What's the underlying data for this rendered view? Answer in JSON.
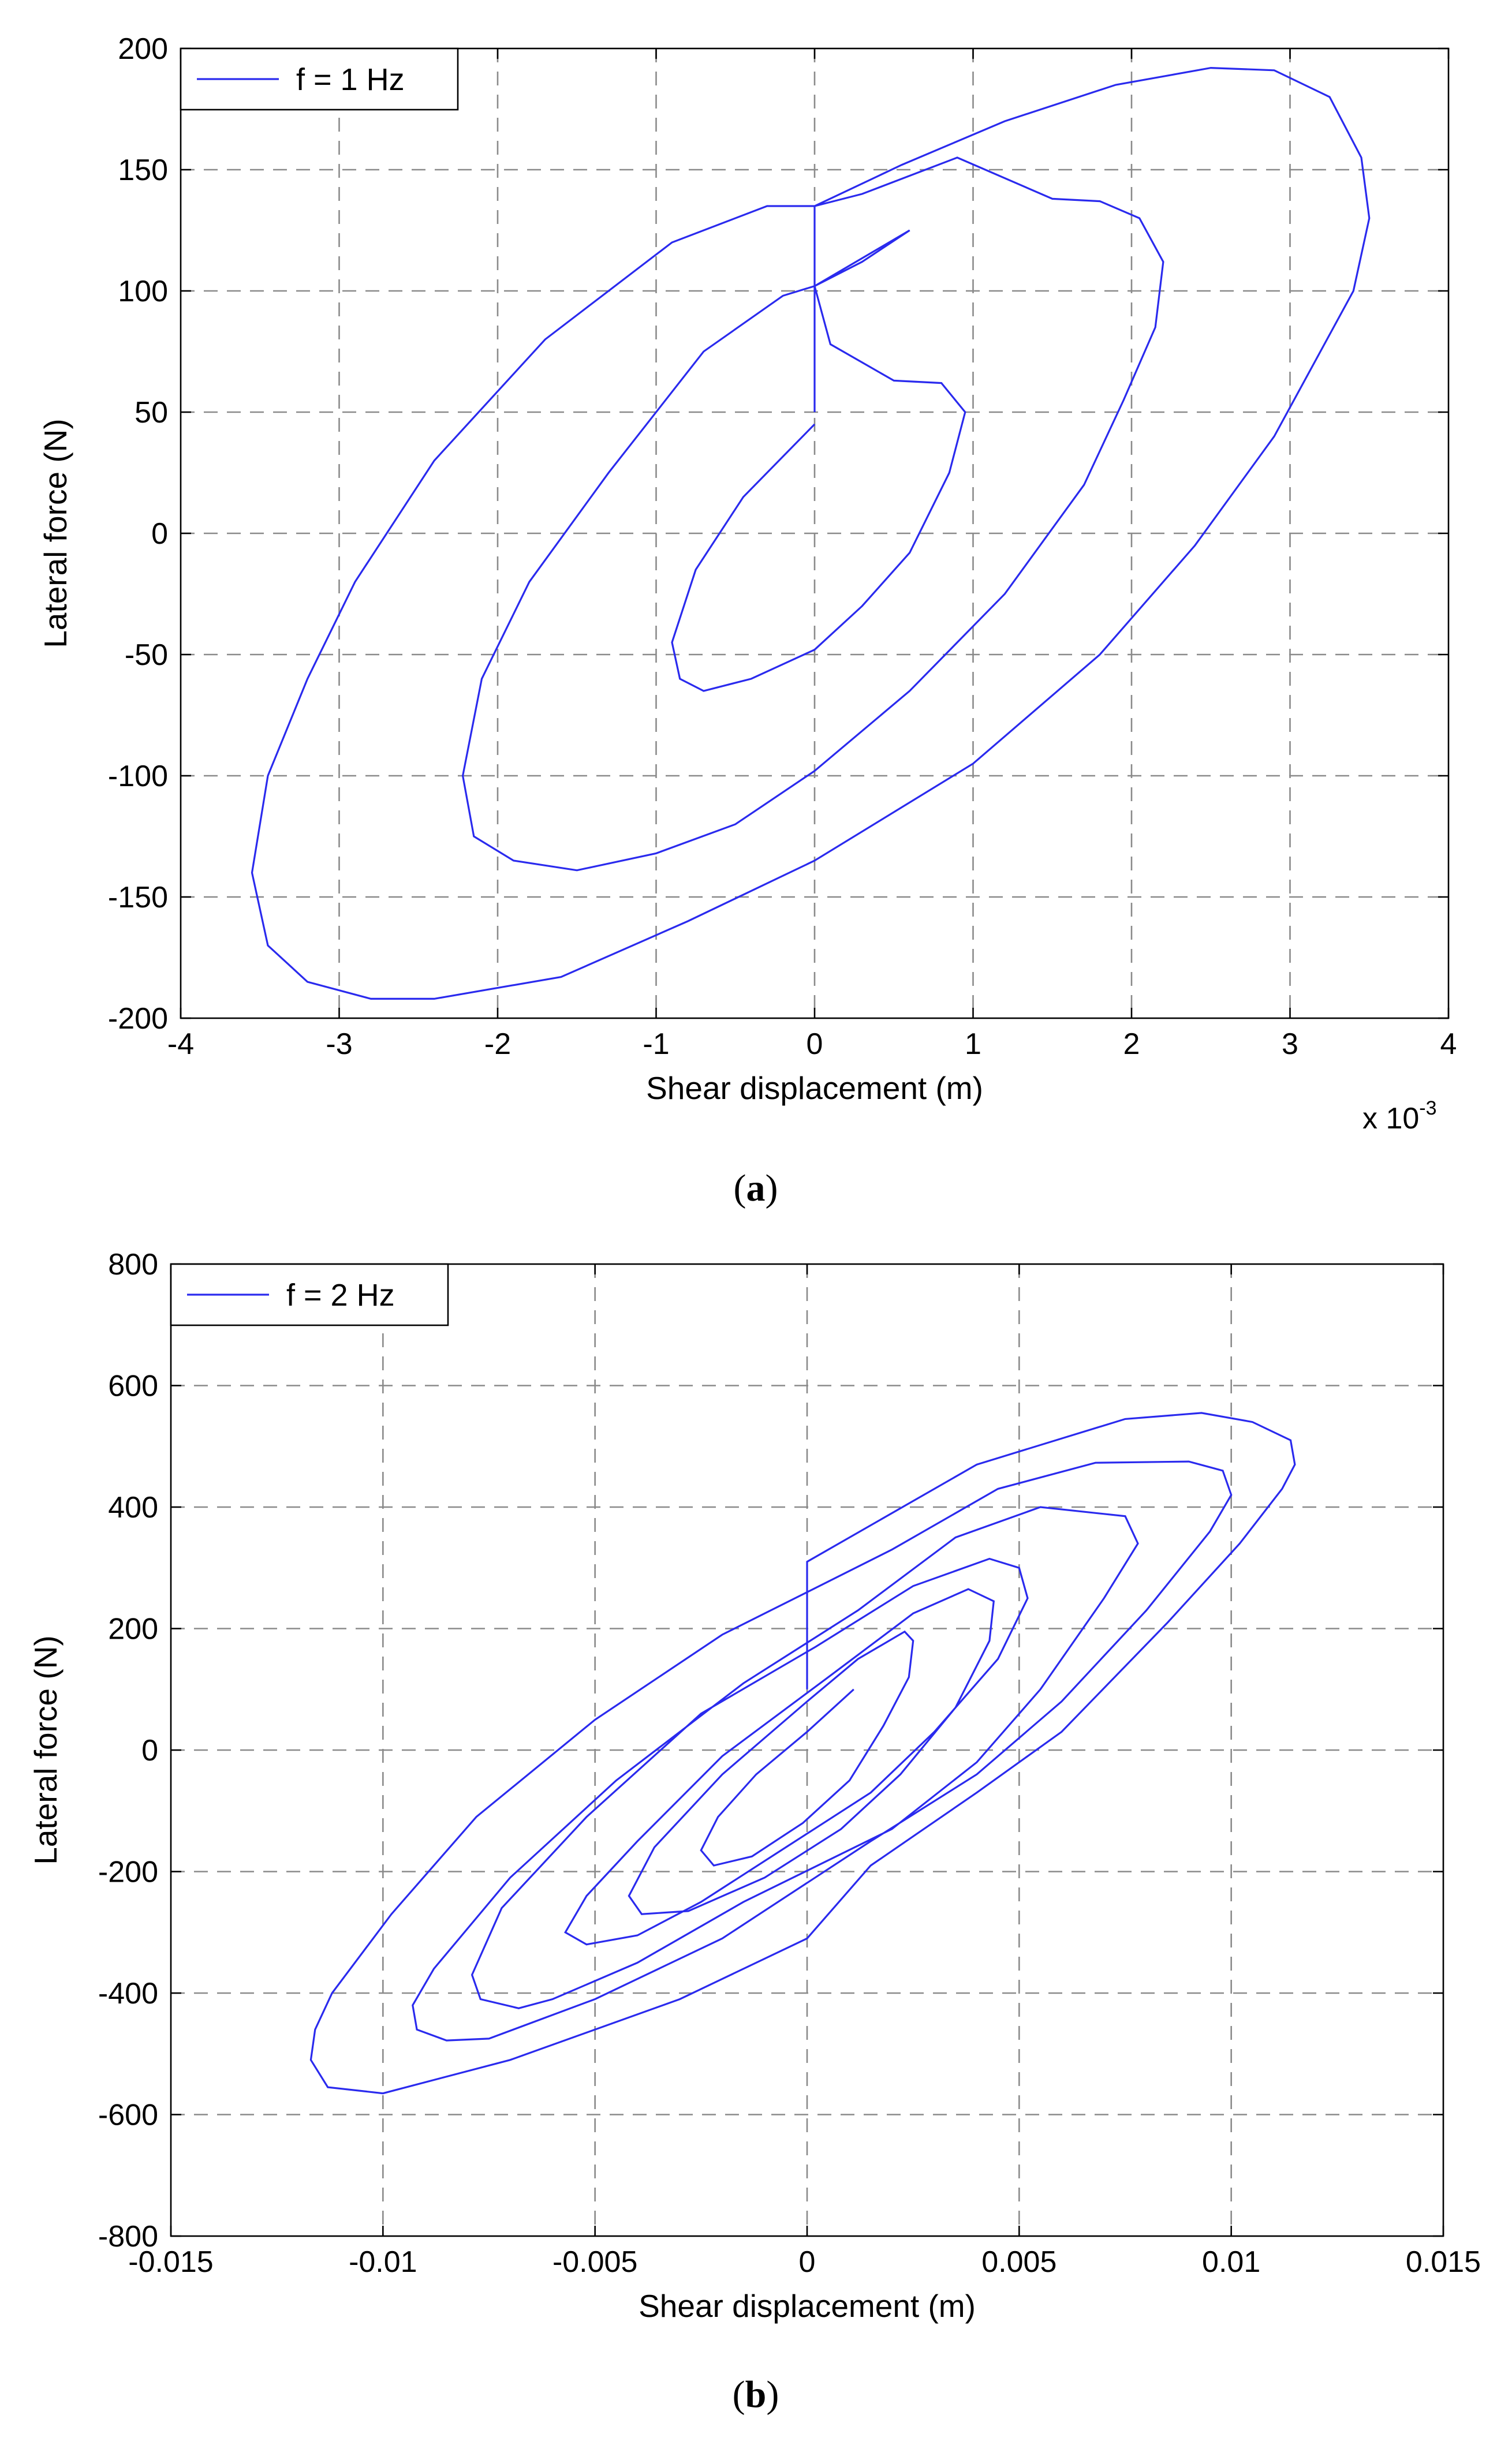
{
  "figure": {
    "colors": {
      "line": "#2a2aee",
      "grid": "#8a8a8a",
      "axes": "#000000",
      "background": "#ffffff"
    }
  },
  "chart_data": [
    {
      "id": "a",
      "type": "line",
      "caption_letter": "a",
      "legend": "f = 1 Hz",
      "legend_placement": "top-left",
      "xlabel": "Shear displacement (m)",
      "ylabel": "Lateral force (N)",
      "x_exponent_label": "x 10",
      "x_exponent_power": "-3",
      "xlim": [
        -4,
        4
      ],
      "ylim": [
        -200,
        200
      ],
      "xticks": [
        -4,
        -3,
        -2,
        -1,
        0,
        1,
        2,
        3,
        4
      ],
      "xtick_labels": [
        "-4",
        "-3",
        "-2",
        "-1",
        "0",
        "1",
        "2",
        "3",
        "4"
      ],
      "yticks": [
        -200,
        -150,
        -100,
        -50,
        0,
        50,
        100,
        150,
        200
      ],
      "ytick_labels": [
        "-200",
        "-150",
        "-100",
        "-50",
        "0",
        "50",
        "100",
        "150",
        "200"
      ],
      "grid": true,
      "series": [
        {
          "name": "f = 1 Hz",
          "x_unit_note": "x values in 1e-3 m",
          "points": [
            [
              0,
              50
            ],
            [
              0,
              135
            ],
            [
              0.55,
              152
            ],
            [
              1.2,
              170
            ],
            [
              1.9,
              185
            ],
            [
              2.5,
              192
            ],
            [
              2.9,
              191
            ],
            [
              3.25,
              180
            ],
            [
              3.45,
              155
            ],
            [
              3.5,
              130
            ],
            [
              3.4,
              100
            ],
            [
              3.15,
              70
            ],
            [
              2.9,
              40
            ],
            [
              2.4,
              -5
            ],
            [
              1.8,
              -50
            ],
            [
              1.0,
              -95
            ],
            [
              0,
              -135
            ],
            [
              -0.8,
              -160
            ],
            [
              -1.6,
              -183
            ],
            [
              -2.4,
              -192
            ],
            [
              -2.8,
              -192
            ],
            [
              -3.2,
              -185
            ],
            [
              -3.45,
              -170
            ],
            [
              -3.55,
              -140
            ],
            [
              -3.45,
              -100
            ],
            [
              -3.2,
              -60
            ],
            [
              -2.9,
              -20
            ],
            [
              -2.4,
              30
            ],
            [
              -1.7,
              80
            ],
            [
              -0.9,
              120
            ],
            [
              -0.3,
              135
            ],
            [
              0,
              135
            ],
            [
              0.3,
              140
            ],
            [
              0.9,
              155
            ],
            [
              1.5,
              138
            ],
            [
              1.8,
              137
            ],
            [
              2.05,
              130
            ],
            [
              2.2,
              112
            ],
            [
              2.15,
              85
            ],
            [
              1.95,
              55
            ],
            [
              1.7,
              20
            ],
            [
              1.2,
              -25
            ],
            [
              0.6,
              -65
            ],
            [
              0,
              -98
            ],
            [
              -0.5,
              -120
            ],
            [
              -1.0,
              -132
            ],
            [
              -1.5,
              -139
            ],
            [
              -1.9,
              -135
            ],
            [
              -2.15,
              -125
            ],
            [
              -2.22,
              -100
            ],
            [
              -2.1,
              -60
            ],
            [
              -1.8,
              -20
            ],
            [
              -1.3,
              25
            ],
            [
              -0.7,
              75
            ],
            [
              -0.2,
              98
            ],
            [
              0,
              102
            ],
            [
              0.3,
              112
            ],
            [
              0.6,
              125
            ],
            [
              0,
              102
            ],
            [
              0.1,
              78
            ],
            [
              0.5,
              63
            ],
            [
              0.8,
              62
            ],
            [
              0.95,
              50
            ],
            [
              0.85,
              25
            ],
            [
              0.6,
              -8
            ],
            [
              0.3,
              -30
            ],
            [
              0,
              -48
            ],
            [
              -0.4,
              -60
            ],
            [
              -0.7,
              -65
            ],
            [
              -0.85,
              -60
            ],
            [
              -0.9,
              -45
            ],
            [
              -0.75,
              -15
            ],
            [
              -0.45,
              15
            ],
            [
              -0.15,
              35
            ],
            [
              0,
              45
            ]
          ]
        }
      ]
    },
    {
      "id": "b",
      "type": "line",
      "caption_letter": "b",
      "legend": "f = 2 Hz",
      "legend_placement": "top-left",
      "xlabel": "Shear displacement (m)",
      "ylabel": "Lateral force (N)",
      "xlim": [
        -0.015,
        0.015
      ],
      "ylim": [
        -800,
        800
      ],
      "xticks": [
        -0.015,
        -0.01,
        -0.005,
        0,
        0.005,
        0.01,
        0.015
      ],
      "xtick_labels": [
        "-0.015",
        "-0.01",
        "-0.005",
        "0",
        "0.005",
        "0.01",
        "0.015"
      ],
      "yticks": [
        -800,
        -600,
        -400,
        -200,
        0,
        200,
        400,
        600,
        800
      ],
      "ytick_labels": [
        "-800",
        "-600",
        "-400",
        "-200",
        "0",
        "200",
        "400",
        "600",
        "800"
      ],
      "grid": true,
      "series": [
        {
          "name": "f = 2 Hz",
          "points": [
            [
              0,
              100
            ],
            [
              0,
              310
            ],
            [
              0.004,
              470
            ],
            [
              0.0075,
              545
            ],
            [
              0.0093,
              555
            ],
            [
              0.0105,
              540
            ],
            [
              0.0114,
              510
            ],
            [
              0.0115,
              470
            ],
            [
              0.0112,
              430
            ],
            [
              0.0102,
              340
            ],
            [
              0.0085,
              210
            ],
            [
              0.006,
              30
            ],
            [
              0.004,
              -70
            ],
            [
              0.0015,
              -190
            ],
            [
              0,
              -310
            ],
            [
              -0.003,
              -410
            ],
            [
              -0.007,
              -510
            ],
            [
              -0.01,
              -565
            ],
            [
              -0.0113,
              -555
            ],
            [
              -0.0117,
              -510
            ],
            [
              -0.0116,
              -460
            ],
            [
              -0.0112,
              -400
            ],
            [
              -0.0098,
              -270
            ],
            [
              -0.0078,
              -110
            ],
            [
              -0.005,
              50
            ],
            [
              -0.002,
              190
            ],
            [
              0,
              260
            ],
            [
              0.002,
              330
            ],
            [
              0.0045,
              430
            ],
            [
              0.0068,
              473
            ],
            [
              0.009,
              475
            ],
            [
              0.0098,
              460
            ],
            [
              0.01,
              420
            ],
            [
              0.0095,
              360
            ],
            [
              0.008,
              230
            ],
            [
              0.006,
              80
            ],
            [
              0.004,
              -40
            ],
            [
              0.0015,
              -150
            ],
            [
              -0.002,
              -310
            ],
            [
              -0.005,
              -410
            ],
            [
              -0.0075,
              -475
            ],
            [
              -0.0085,
              -478
            ],
            [
              -0.0092,
              -460
            ],
            [
              -0.0093,
              -420
            ],
            [
              -0.0088,
              -360
            ],
            [
              -0.007,
              -210
            ],
            [
              -0.0045,
              -50
            ],
            [
              -0.0015,
              110
            ],
            [
              0.0012,
              230
            ],
            [
              0.0035,
              350
            ],
            [
              0.0055,
              400
            ],
            [
              0.0075,
              385
            ],
            [
              0.0078,
              340
            ],
            [
              0.007,
              250
            ],
            [
              0.0055,
              100
            ],
            [
              0.004,
              -20
            ],
            [
              0.002,
              -130
            ],
            [
              -0.0015,
              -250
            ],
            [
              -0.004,
              -350
            ],
            [
              -0.006,
              -410
            ],
            [
              -0.0068,
              -425
            ],
            [
              -0.0077,
              -410
            ],
            [
              -0.0079,
              -370
            ],
            [
              -0.0072,
              -260
            ],
            [
              -0.0052,
              -110
            ],
            [
              -0.0025,
              60
            ],
            [
              0.0002,
              170
            ],
            [
              0.0025,
              270
            ],
            [
              0.0043,
              315
            ],
            [
              0.005,
              300
            ],
            [
              0.0052,
              250
            ],
            [
              0.0045,
              150
            ],
            [
              0.003,
              30
            ],
            [
              0.0015,
              -70
            ],
            [
              -0.0005,
              -160
            ],
            [
              -0.0025,
              -250
            ],
            [
              -0.004,
              -305
            ],
            [
              -0.0052,
              -320
            ],
            [
              -0.0057,
              -300
            ],
            [
              -0.0052,
              -240
            ],
            [
              -0.004,
              -150
            ],
            [
              -0.002,
              -10
            ],
            [
              0.0005,
              120
            ],
            [
              0.0025,
              225
            ],
            [
              0.0038,
              265
            ],
            [
              0.0044,
              245
            ],
            [
              0.0043,
              180
            ],
            [
              0.0035,
              70
            ],
            [
              0.0022,
              -40
            ],
            [
              0.0008,
              -130
            ],
            [
              -0.001,
              -210
            ],
            [
              -0.0028,
              -265
            ],
            [
              -0.0039,
              -270
            ],
            [
              -0.0042,
              -240
            ],
            [
              -0.0036,
              -160
            ],
            [
              -0.002,
              -40
            ],
            [
              0,
              80
            ],
            [
              0.0012,
              150
            ],
            [
              0.0023,
              195
            ],
            [
              0.0025,
              180
            ],
            [
              0.0024,
              120
            ],
            [
              0.0018,
              40
            ],
            [
              0.001,
              -50
            ],
            [
              -0.0001,
              -120
            ],
            [
              -0.0013,
              -175
            ],
            [
              -0.0022,
              -190
            ],
            [
              -0.0025,
              -165
            ],
            [
              -0.0021,
              -110
            ],
            [
              -0.0012,
              -40
            ],
            [
              0,
              30
            ],
            [
              0.0011,
              100
            ]
          ]
        }
      ]
    }
  ]
}
